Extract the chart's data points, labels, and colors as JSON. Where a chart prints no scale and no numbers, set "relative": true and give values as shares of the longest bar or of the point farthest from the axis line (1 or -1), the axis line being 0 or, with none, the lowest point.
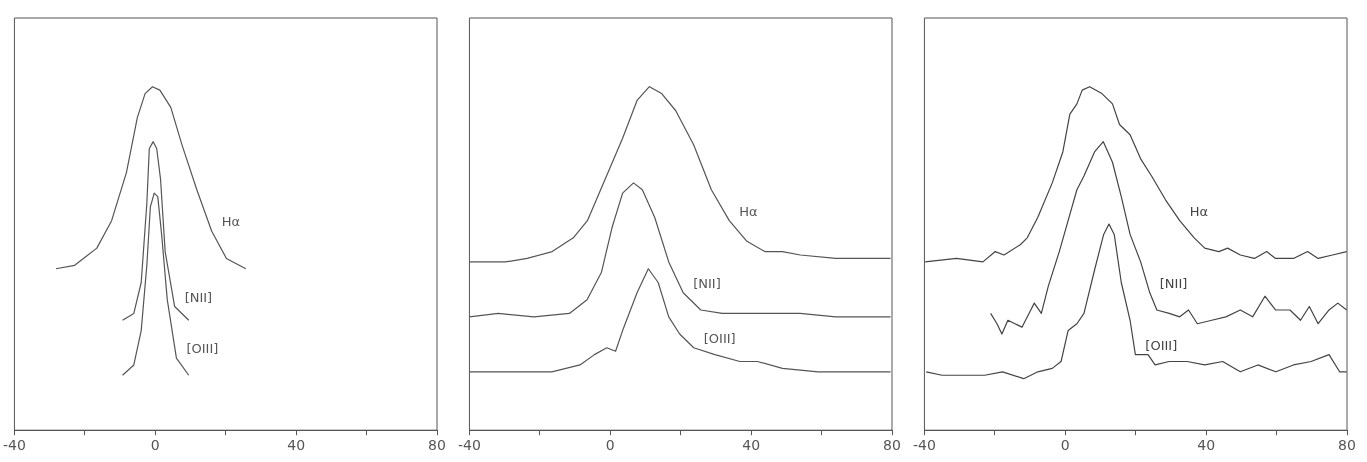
{
  "chart_data": [
    {
      "type": "line",
      "relative": true,
      "xlim": [
        -40,
        80
      ],
      "xticks": [
        -40,
        {
          "value": -20,
          "label": null
        },
        0,
        {
          "value": 20,
          "label": null
        },
        40,
        {
          "value": 60,
          "label": null
        },
        80
      ],
      "grid": false,
      "legend": false,
      "marker": "none",
      "series": [
        {
          "name": "Hα",
          "color": "#555555",
          "x": [
            -28.2,
            -22.9,
            -16.6,
            -12.4,
            -8.2,
            -5.1,
            -2.9,
            -0.8,
            1.3,
            4.4,
            7.6,
            11.8,
            16,
            20.2,
            25.7
          ],
          "values": [
            0.47,
            0.48,
            0.53,
            0.61,
            0.75,
            0.91,
            0.98,
            1,
            0.99,
            0.94,
            0.83,
            0.7,
            0.58,
            0.5,
            0.47
          ]
        },
        {
          "name": "[NII]",
          "color": "#555555",
          "x": [
            -9.3,
            -6.1,
            -4,
            -2.4,
            -1.7,
            -0.6,
            0.4,
            1.5,
            2.8,
            5.5,
            9.5
          ],
          "values": [
            0.32,
            0.34,
            0.43,
            0.66,
            0.82,
            0.84,
            0.82,
            0.73,
            0.52,
            0.36,
            0.32
          ]
        },
        {
          "name": "[OIII]",
          "color": "#555555",
          "x": [
            -9.3,
            -6.1,
            -4,
            -2.4,
            -1.4,
            -0.3,
            0.7,
            1.8,
            3.4,
            6,
            9.5
          ],
          "values": [
            0.16,
            0.19,
            0.29,
            0.48,
            0.65,
            0.69,
            0.68,
            0.57,
            0.38,
            0.21,
            0.16
          ]
        }
      ]
    },
    {
      "type": "line",
      "relative": true,
      "xlim": [
        -40,
        80
      ],
      "xticks": [
        -40,
        {
          "value": -20,
          "label": null
        },
        0,
        {
          "value": 20,
          "label": null
        },
        40,
        {
          "value": 60,
          "label": null
        },
        80
      ],
      "grid": false,
      "legend": false,
      "marker": "none",
      "series": [
        {
          "name": "Hα",
          "color": "#555555",
          "x": [
            -40,
            -29.7,
            -23.6,
            -16.5,
            -10.5,
            -6.5,
            -1.5,
            3.5,
            7.6,
            11.1,
            14.6,
            18.6,
            23.7,
            28.7,
            33.8,
            38.8,
            43.9,
            48.9,
            54,
            64,
            74.1,
            79.6
          ],
          "values": [
            0.49,
            0.49,
            0.5,
            0.52,
            0.56,
            0.61,
            0.73,
            0.85,
            0.96,
            1,
            0.98,
            0.93,
            0.83,
            0.7,
            0.61,
            0.55,
            0.52,
            0.52,
            0.51,
            0.5,
            0.5,
            0.5
          ]
        },
        {
          "name": "[NII]",
          "color": "#555555",
          "x": [
            -40,
            -31.8,
            -21.7,
            -11.6,
            -6.6,
            -2.5,
            0.5,
            3.5,
            6.6,
            9.1,
            12.6,
            16.6,
            20.7,
            25.7,
            31.8,
            43.9,
            53.9,
            64,
            79.6
          ],
          "values": [
            0.33,
            0.34,
            0.33,
            0.34,
            0.38,
            0.46,
            0.59,
            0.69,
            0.72,
            0.7,
            0.62,
            0.49,
            0.4,
            0.35,
            0.34,
            0.34,
            0.34,
            0.33,
            0.33
          ]
        },
        {
          "name": "[OIII]",
          "color": "#555555",
          "x": [
            -40,
            -28.7,
            -16.6,
            -8.6,
            -4.5,
            -1,
            1.5,
            3.5,
            7.6,
            10.8,
            13.6,
            16.6,
            19.7,
            23.7,
            29.7,
            36.8,
            41.8,
            48.9,
            59,
            69,
            79.6
          ],
          "values": [
            0.17,
            0.17,
            0.17,
            0.19,
            0.22,
            0.24,
            0.23,
            0.29,
            0.4,
            0.47,
            0.43,
            0.33,
            0.28,
            0.24,
            0.22,
            0.2,
            0.2,
            0.18,
            0.17,
            0.17,
            0.17
          ]
        }
      ]
    },
    {
      "type": "line",
      "relative": true,
      "xlim": [
        -40,
        80
      ],
      "xticks": [
        -40,
        {
          "value": -20,
          "label": null
        },
        0,
        {
          "value": 20,
          "label": null
        },
        40,
        {
          "value": 60,
          "label": null
        },
        80
      ],
      "grid": false,
      "legend": false,
      "marker": "none",
      "series": [
        {
          "name": "Hα",
          "color": "#444444",
          "x": [
            -39.8,
            -30.9,
            -23.4,
            -19.9,
            -17.4,
            -12.8,
            -10.8,
            -7.8,
            -3.7,
            -0.7,
            1.3,
            3.3,
            4.8,
            6.9,
            10.4,
            13.4,
            15.4,
            18.4,
            21.4,
            24.5,
            28.5,
            32.5,
            36.6,
            39.6,
            43.6,
            46.1,
            49.7,
            53.7,
            57.2,
            59.7,
            64.8,
            68.8,
            71.8,
            75.9,
            79.9
          ],
          "values": [
            0.49,
            0.5,
            0.49,
            0.52,
            0.51,
            0.54,
            0.56,
            0.62,
            0.72,
            0.81,
            0.92,
            0.95,
            0.99,
            1,
            0.98,
            0.95,
            0.89,
            0.86,
            0.79,
            0.74,
            0.67,
            0.61,
            0.56,
            0.53,
            0.52,
            0.53,
            0.51,
            0.5,
            0.52,
            0.5,
            0.5,
            0.52,
            0.5,
            0.51,
            0.52
          ]
        },
        {
          "name": "[NII]",
          "color": "#444444",
          "x": [
            -21.2,
            -19.4,
            -18,
            -16.3,
            -14.3,
            -12.3,
            -9.8,
            -8.8,
            -6.8,
            -4.8,
            -1.7,
            0.8,
            3.3,
            5.3,
            8.3,
            10.8,
            13.4,
            15.9,
            18.4,
            21.4,
            24,
            26,
            29.5,
            32.5,
            35,
            37.5,
            41.6,
            45.6,
            49.7,
            53.2,
            56.7,
            59.7,
            63.8,
            66.8,
            69.3,
            71.8,
            74.9,
            77.4,
            79.9
          ],
          "values": [
            0.34,
            0.31,
            0.28,
            0.32,
            0.31,
            0.3,
            0.35,
            0.37,
            0.34,
            0.42,
            0.52,
            0.61,
            0.7,
            0.74,
            0.81,
            0.84,
            0.78,
            0.68,
            0.57,
            0.49,
            0.4,
            0.35,
            0.34,
            0.33,
            0.35,
            0.31,
            0.32,
            0.33,
            0.35,
            0.33,
            0.39,
            0.35,
            0.35,
            0.32,
            0.36,
            0.31,
            0.35,
            0.37,
            0.35
          ]
        },
        {
          "name": "[OIII]",
          "color": "#444444",
          "x": [
            -39.5,
            -35,
            -28.9,
            -22.9,
            -17.8,
            -11.8,
            -7.8,
            -3.7,
            -1.2,
            0.8,
            3.3,
            5.3,
            8.4,
            10.9,
            12.4,
            13.9,
            15.9,
            18.4,
            19.9,
            23.5,
            25.5,
            29.5,
            34.6,
            39.6,
            44.7,
            49.7,
            54.7,
            59.8,
            64.8,
            69.8,
            74.9,
            77.9,
            79.9
          ],
          "values": [
            0.17,
            0.16,
            0.16,
            0.16,
            0.17,
            0.15,
            0.17,
            0.18,
            0.2,
            0.29,
            0.31,
            0.34,
            0.47,
            0.57,
            0.6,
            0.57,
            0.43,
            0.32,
            0.22,
            0.22,
            0.19,
            0.2,
            0.2,
            0.19,
            0.2,
            0.17,
            0.19,
            0.17,
            0.19,
            0.2,
            0.22,
            0.17,
            0.17
          ]
        }
      ]
    }
  ]
}
